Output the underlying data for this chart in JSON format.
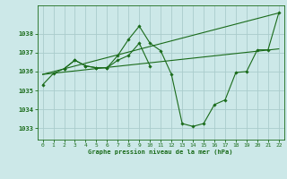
{
  "title": "Graphe pression niveau de la mer (hPa)",
  "background_color": "#cce8e8",
  "grid_color": "#aacccc",
  "line_color": "#1a6b1a",
  "xlim": [
    -0.5,
    22.5
  ],
  "ylim": [
    1032.4,
    1039.5
  ],
  "yticks": [
    1033,
    1034,
    1035,
    1036,
    1037,
    1038
  ],
  "xticks": [
    0,
    1,
    2,
    3,
    4,
    5,
    6,
    7,
    8,
    9,
    10,
    11,
    12,
    13,
    14,
    15,
    16,
    17,
    18,
    19,
    20,
    21,
    22
  ],
  "series1_x": [
    0,
    1,
    2,
    3,
    4,
    5,
    6,
    7,
    8,
    9,
    10,
    11,
    12,
    13,
    14,
    15,
    16,
    17,
    18,
    19,
    20,
    21,
    22
  ],
  "series1_y": [
    1035.3,
    1035.9,
    1036.15,
    1036.6,
    1036.3,
    1036.2,
    1036.2,
    1036.85,
    1037.7,
    1038.4,
    1037.5,
    1037.1,
    1035.85,
    1033.25,
    1033.1,
    1033.25,
    1034.25,
    1034.5,
    1035.95,
    1036.0,
    1037.15,
    1037.15,
    1039.1
  ],
  "series2_x": [
    2,
    3,
    4,
    5,
    6,
    7,
    8,
    9,
    10
  ],
  "series2_y": [
    1036.15,
    1036.6,
    1036.3,
    1036.2,
    1036.2,
    1036.6,
    1036.85,
    1037.5,
    1036.3
  ],
  "series3_x": [
    0,
    22
  ],
  "series3_y": [
    1035.85,
    1039.1
  ],
  "series4_x": [
    0,
    22
  ],
  "series4_y": [
    1035.85,
    1037.2
  ],
  "figwidth": 3.2,
  "figheight": 2.0,
  "dpi": 100
}
